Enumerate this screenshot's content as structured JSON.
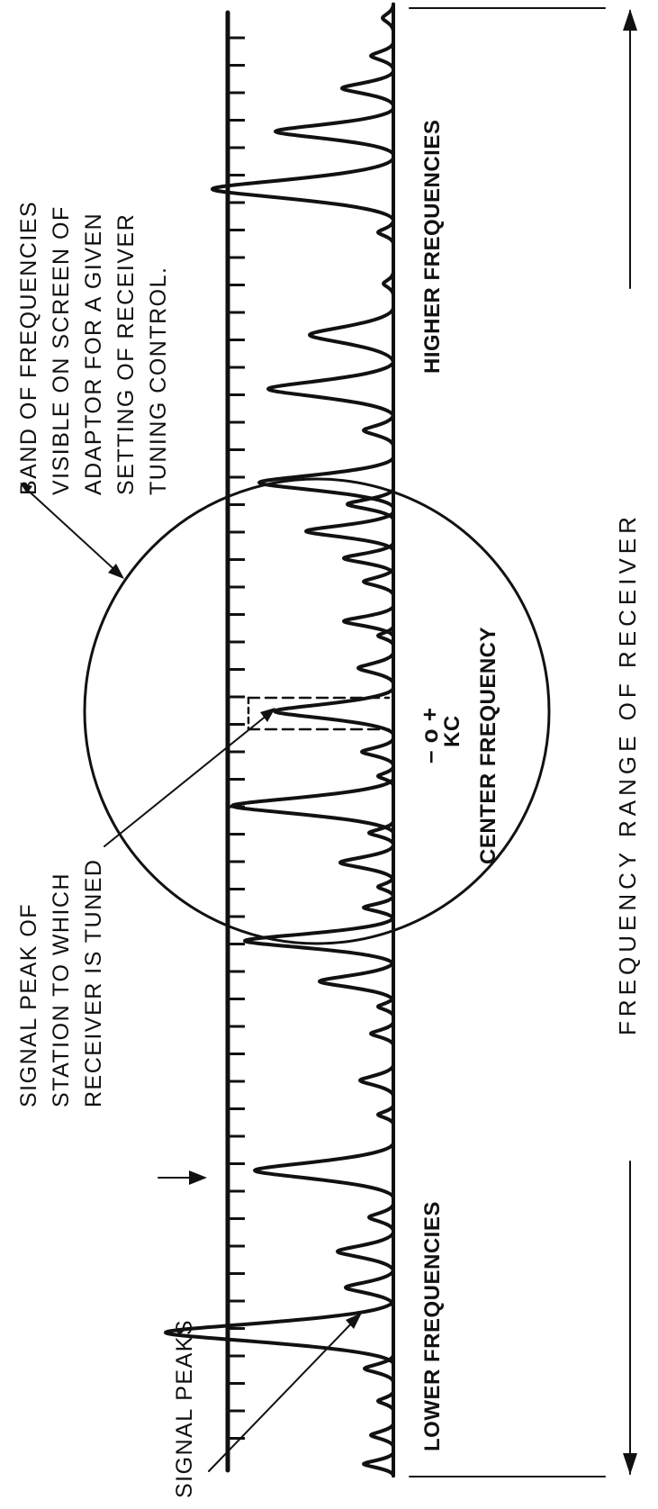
{
  "labels": {
    "band_visible": [
      "BAND OF FREQUENCIES",
      "VISIBLE ON SCREEN OF",
      "ADAPTOR FOR A GIVEN",
      "SETTING OF RECEIVER",
      "TUNING  CONTROL."
    ],
    "signal_peak_tuned": [
      "SIGNAL  PEAK  OF",
      "STATION TO WHICH",
      "RECEIVER  IS TUNED"
    ],
    "signal_peaks": "SIGNAL PEAKS",
    "lower_frequencies": "LOWER FREQUENCIES",
    "higher_frequencies": "HIGHER FREQUENCIES",
    "center_frequency": "CENTER FREQUENCY",
    "kc": "KC",
    "offset_marks": "– o +",
    "frequency_range": "FREQUENCY   RANGE   OF   RECEIVER"
  },
  "colors": {
    "ink": "#111111",
    "paper": "#ffffff"
  }
}
